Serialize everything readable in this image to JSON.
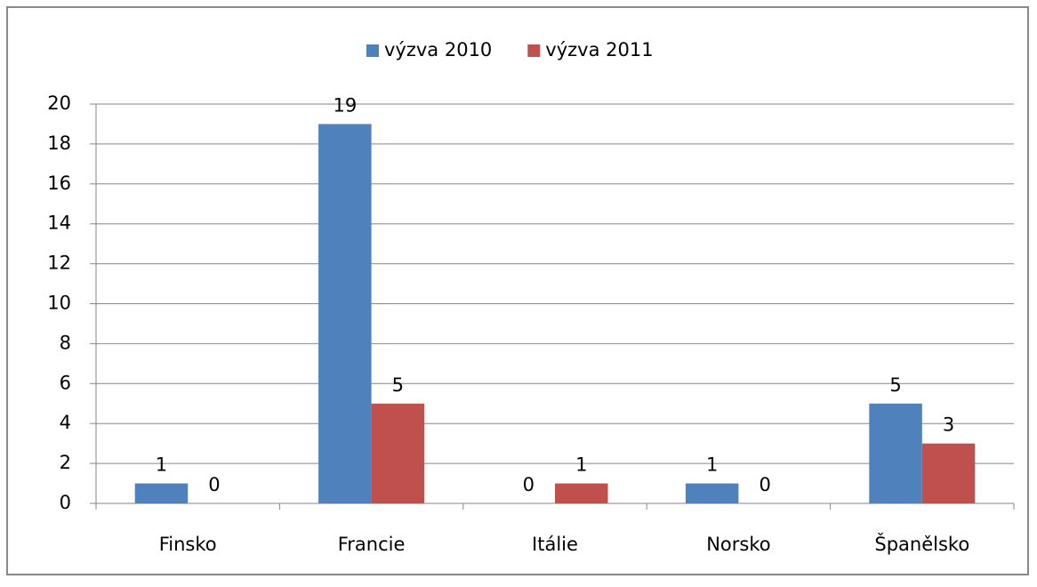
{
  "chart_data": {
    "type": "bar",
    "categories": [
      "Finsko",
      "Francie",
      "Itálie",
      "Norsko",
      "Španělsko"
    ],
    "series": [
      {
        "name": "výzva 2010",
        "color": "#4f81bd",
        "values": [
          1,
          19,
          0,
          1,
          5
        ]
      },
      {
        "name": "výzva 2011",
        "color": "#c0504d",
        "values": [
          0,
          5,
          1,
          0,
          3
        ]
      }
    ],
    "ylim": [
      0,
      20
    ],
    "yticks": [
      0,
      2,
      4,
      6,
      8,
      10,
      12,
      14,
      16,
      18,
      20
    ],
    "grid": true,
    "legend": "top"
  }
}
